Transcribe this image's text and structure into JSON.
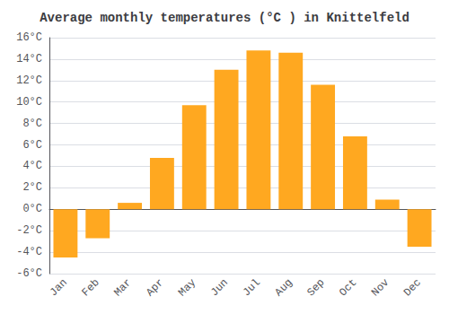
{
  "chart_data": {
    "type": "bar",
    "title": "Average monthly temperatures (°C ) in Knittelfeld",
    "categories": [
      "Jan",
      "Feb",
      "Mar",
      "Apr",
      "May",
      "Jun",
      "Jul",
      "Aug",
      "Sep",
      "Oct",
      "Nov",
      "Dec"
    ],
    "values": [
      -4.5,
      -2.7,
      0.6,
      4.8,
      9.7,
      13.0,
      14.8,
      14.6,
      11.6,
      6.8,
      0.9,
      -3.5
    ],
    "color": "#FFA820",
    "ylim": [
      -6,
      16
    ],
    "yticks": [
      {
        "value": -6,
        "label": "-6°C"
      },
      {
        "value": -4,
        "label": "-4°C"
      },
      {
        "value": -2,
        "label": "-2°C"
      },
      {
        "value": 0,
        "label": "0°C"
      },
      {
        "value": 2,
        "label": "2°C"
      },
      {
        "value": 4,
        "label": "4°C"
      },
      {
        "value": 6,
        "label": "6°C"
      },
      {
        "value": 8,
        "label": "8°C"
      },
      {
        "value": 10,
        "label": "10°C"
      },
      {
        "value": 12,
        "label": "12°C"
      },
      {
        "value": 14,
        "label": "14°C"
      },
      {
        "value": 16,
        "label": "16°C"
      }
    ],
    "grid": true
  }
}
